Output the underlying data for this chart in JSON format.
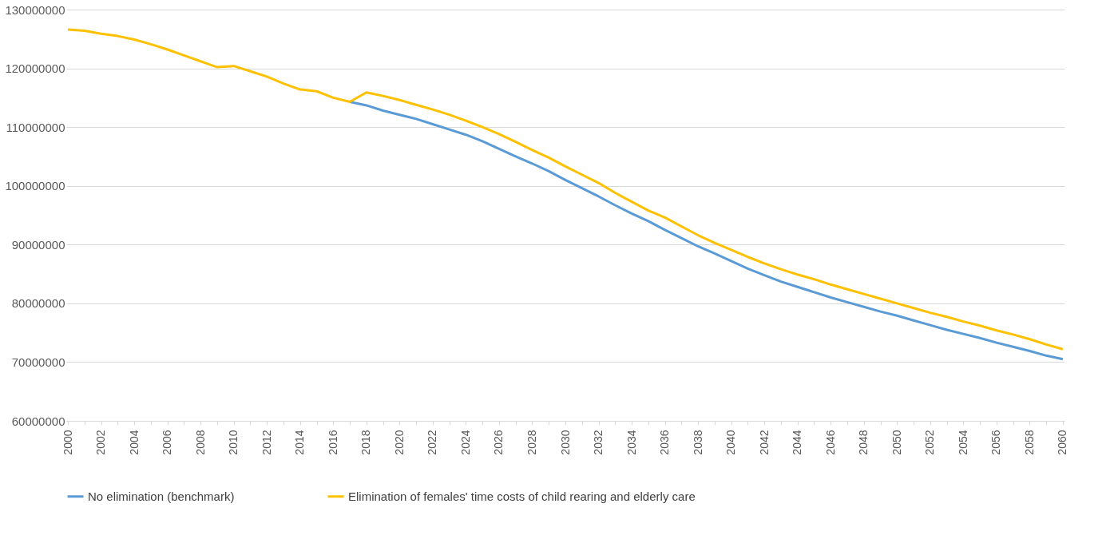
{
  "chart_data": {
    "type": "line",
    "categories": [
      "2000",
      null,
      "2002",
      null,
      "2004",
      null,
      "2006",
      null,
      "2008",
      null,
      "2010",
      null,
      "2012",
      null,
      "2014",
      null,
      "2016",
      null,
      "2018",
      null,
      "2020",
      null,
      "2022",
      null,
      "2024",
      null,
      "2026",
      null,
      "2028",
      null,
      "2030",
      null,
      "2032",
      null,
      "2034",
      null,
      "2036",
      null,
      "2038",
      null,
      "2040",
      null,
      "2042",
      null,
      "2044",
      null,
      "2046",
      null,
      "2048",
      null,
      "2050",
      null,
      "2052",
      null,
      "2054",
      null,
      "2056",
      null,
      "2058",
      null,
      "2060"
    ],
    "series": [
      {
        "name": "No elimination (benchmark)",
        "color": "#5b9bd5",
        "values": [
          null,
          null,
          null,
          null,
          null,
          null,
          null,
          null,
          null,
          null,
          null,
          null,
          null,
          null,
          null,
          null,
          null,
          114300000,
          113700000,
          112800000,
          112100000,
          111400000,
          110500000,
          109600000,
          108700000,
          107600000,
          106300000,
          105000000,
          103800000,
          102500000,
          101000000,
          99600000,
          98200000,
          96700000,
          95300000,
          94000000,
          92500000,
          91100000,
          89700000,
          88500000,
          87200000,
          85900000,
          84800000,
          83700000,
          82800000,
          81900000,
          81000000,
          80200000,
          79400000,
          78600000,
          77900000,
          77100000,
          76300000,
          75500000,
          74800000,
          74100000,
          73300000,
          72600000,
          71900000,
          71100000,
          70500000
        ]
      },
      {
        "name": "Elimination of females' time costs of child rearing and elderly care",
        "color": "#ffc000",
        "values": [
          126600000,
          126400000,
          125900000,
          125500000,
          124900000,
          124100000,
          123200000,
          122200000,
          121200000,
          120200000,
          120400000,
          119500000,
          118600000,
          117400000,
          116400000,
          116100000,
          115000000,
          114300000,
          115900000,
          115300000,
          114600000,
          113800000,
          113000000,
          112100000,
          111100000,
          110000000,
          108800000,
          107500000,
          106100000,
          104800000,
          103300000,
          101900000,
          100500000,
          98800000,
          97300000,
          95800000,
          94600000,
          93100000,
          91600000,
          90300000,
          89100000,
          87900000,
          86800000,
          85800000,
          84900000,
          84100000,
          83200000,
          82400000,
          81600000,
          80800000,
          80000000,
          79200000,
          78400000,
          77700000,
          76900000,
          76200000,
          75400000,
          74700000,
          73900000,
          73000000,
          72200000
        ]
      }
    ],
    "ylim": [
      60000000,
      130000000
    ],
    "yticks": [
      60000000,
      70000000,
      80000000,
      90000000,
      100000000,
      110000000,
      120000000,
      130000000
    ],
    "grid": "y",
    "legend": "bottom",
    "marker": "none",
    "line_style": "solid"
  }
}
